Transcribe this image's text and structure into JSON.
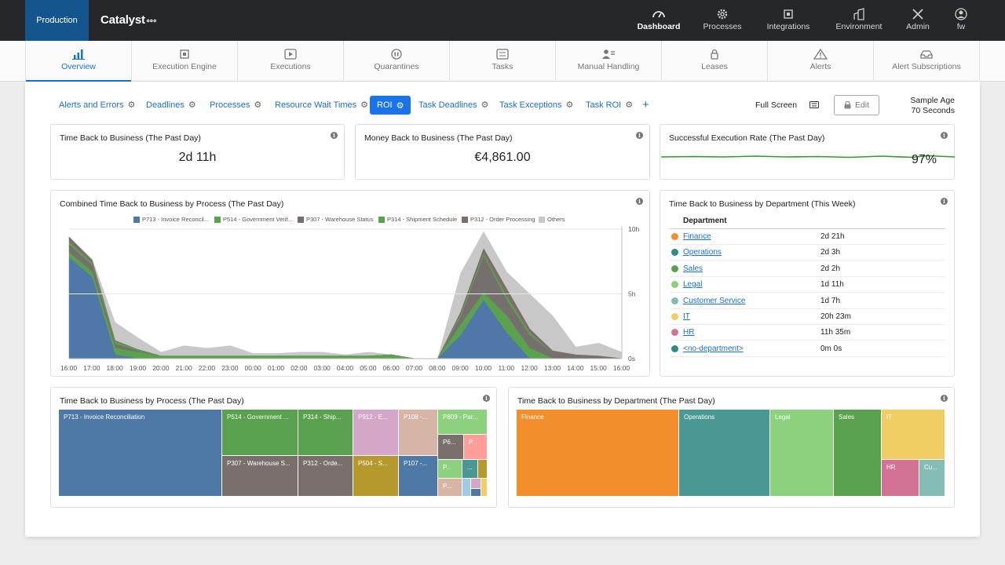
{
  "topbar": {
    "environment": "Production",
    "brand": "Catalyst",
    "nav": [
      {
        "label": "Dashboard",
        "icon": "gauge-icon",
        "active": true
      },
      {
        "label": "Processes",
        "icon": "cog-icon"
      },
      {
        "label": "Integrations",
        "icon": "chip-icon"
      },
      {
        "label": "Environment",
        "icon": "building-icon"
      },
      {
        "label": "Admin",
        "icon": "tools-icon"
      },
      {
        "label": "fw",
        "icon": "user-icon"
      }
    ]
  },
  "subnav": [
    {
      "label": "Overview",
      "icon": "bar-chart-icon",
      "active": true
    },
    {
      "label": "Execution Engine",
      "icon": "chip-icon"
    },
    {
      "label": "Executions",
      "icon": "play-icon"
    },
    {
      "label": "Quarantines",
      "icon": "pause-icon"
    },
    {
      "label": "Tasks",
      "icon": "task-list-icon"
    },
    {
      "label": "Manual Handling",
      "icon": "person-list-icon"
    },
    {
      "label": "Leases",
      "icon": "lock-icon"
    },
    {
      "label": "Alerts",
      "icon": "warning-icon"
    },
    {
      "label": "Alert Subscriptions",
      "icon": "inbox-icon"
    }
  ],
  "tabs": [
    {
      "label": "Alerts and Errors"
    },
    {
      "label": "Deadlines"
    },
    {
      "label": "Processes"
    },
    {
      "label": "Resource Wait Times"
    },
    {
      "label": "ROI",
      "active": true
    },
    {
      "label": "Task Deadlines"
    },
    {
      "label": "Task Exceptions"
    },
    {
      "label": "Task ROI"
    }
  ],
  "toolbar": {
    "add_symbol": "+",
    "fullscreen": "Full Screen",
    "edit": "Edit",
    "sample_age_label": "Sample Age",
    "sample_age_value": "70 Seconds"
  },
  "kpis": [
    {
      "title": "Time Back to Business (The Past Day)",
      "value": "2d 11h"
    },
    {
      "title": "Money Back to Business (The Past Day)",
      "value": "€4,861.00"
    },
    {
      "title": "Successful Execution Rate (The Past Day)",
      "value": "97%"
    }
  ],
  "chart_data": [
    {
      "type": "area",
      "title": "Combined Time Back to Business by Process (The Past Day)",
      "x": [
        "16:00",
        "17:00",
        "18:00",
        "19:00",
        "20:00",
        "21:00",
        "22:00",
        "23:00",
        "00:00",
        "01:00",
        "02:00",
        "03:00",
        "04:00",
        "05:00",
        "06:00",
        "07:00",
        "08:00",
        "09:00",
        "10:00",
        "11:00",
        "12:00",
        "13:00",
        "14:00",
        "15:00",
        "16:00"
      ],
      "yticks": [
        "10h",
        "5h",
        "0s"
      ],
      "ylim": [
        0,
        10
      ],
      "stacked": true,
      "series": [
        {
          "name": "P713 - Invoice Reconcil...",
          "color": "#4f77a8",
          "values": [
            7.8,
            6.3,
            0.3,
            0,
            0,
            0,
            0,
            0,
            0,
            0,
            0,
            0,
            0,
            0,
            0,
            0,
            0,
            1.8,
            4.5,
            2.0,
            0,
            0,
            0,
            0,
            0
          ]
        },
        {
          "name": "P514 - Government Verif...",
          "color": "#5ba24f",
          "values": [
            0.4,
            0.4,
            0.5,
            0.5,
            0.2,
            0.2,
            0.2,
            0.2,
            0.2,
            0.2,
            0.2,
            0.2,
            0.2,
            0.2,
            0.3,
            0,
            0,
            0.8,
            0.6,
            1.3,
            0.8,
            0,
            0,
            0,
            0
          ]
        },
        {
          "name": "P307 - Warehouse Status",
          "color": "#75706d",
          "values": [
            0.6,
            0.5,
            0.3,
            0.1,
            0,
            0,
            0,
            0,
            0,
            0,
            0,
            0,
            0,
            0,
            0,
            0,
            0,
            0.6,
            2.8,
            1.2,
            1.0,
            0.4,
            0.2,
            0.2,
            0
          ]
        },
        {
          "name": "P314 - Shipment Schedule",
          "color": "#59a14f",
          "values": [
            0.2,
            0.2,
            0.2,
            0.1,
            0,
            0,
            0,
            0,
            0,
            0,
            0,
            0,
            0,
            0,
            0,
            0,
            0,
            0.2,
            0.2,
            0.3,
            0.2,
            0,
            0,
            0,
            0
          ]
        },
        {
          "name": "P312 - Order Processing",
          "color": "#7d6e6b",
          "values": [
            0.4,
            0.2,
            0.1,
            0,
            0,
            0,
            0,
            0,
            0,
            0,
            0,
            0,
            0,
            0,
            0,
            0,
            0,
            0.2,
            0.4,
            0.6,
            0.3,
            0.2,
            0.1,
            0,
            0
          ]
        },
        {
          "name": "Others",
          "color": "#c8c8c8",
          "values": [
            0,
            0.1,
            1.4,
            0.9,
            0.3,
            0.8,
            0.6,
            0.8,
            0.2,
            0.2,
            0.3,
            0.3,
            0.1,
            0.3,
            0,
            0,
            0,
            3.0,
            1.3,
            1.3,
            2.7,
            2.7,
            0.6,
            1.0,
            0.5
          ]
        }
      ]
    },
    {
      "type": "table",
      "title": "Time Back to Business by Department (This Week)",
      "header": "Department",
      "rows": [
        {
          "name": "Finance",
          "value": "2d 21h",
          "color": "#f28e2b"
        },
        {
          "name": "Operations",
          "value": "2d 3h",
          "color": "#2e8b86"
        },
        {
          "name": "Sales",
          "value": "2d 2h",
          "color": "#59a14f"
        },
        {
          "name": "Legal",
          "value": "1d 11h",
          "color": "#8cd17d"
        },
        {
          "name": "Customer Service",
          "value": "1d 7h",
          "color": "#86bcb6"
        },
        {
          "name": "IT",
          "value": "20h 23m",
          "color": "#f1ce63"
        },
        {
          "name": "HR",
          "value": "11h 35m",
          "color": "#d37295"
        },
        {
          "name": "<no-department>",
          "value": "0m 0s",
          "color": "#2e8b86"
        }
      ]
    },
    {
      "type": "heatmap",
      "title": "Time Back to Business by Process (The Past Day)",
      "cells": [
        {
          "label": "P713 - Invoice Reconciliation",
          "color": "#4e79a7"
        },
        {
          "label": "P514 - Government ...",
          "color": "#59a14f"
        },
        {
          "label": "P307 - Warehouse S...",
          "color": "#79706e"
        },
        {
          "label": "P314 - Ship...",
          "color": "#59a14f"
        },
        {
          "label": "P312 - Orde...",
          "color": "#79706e"
        },
        {
          "label": "P912 - E...",
          "color": "#d4a6c8"
        },
        {
          "label": "P504 - S...",
          "color": "#b6992d"
        },
        {
          "label": "P108 -...",
          "color": "#d7b5a6"
        },
        {
          "label": "P107 -...",
          "color": "#4e79a7"
        },
        {
          "label": "P809 - Par...",
          "color": "#8cd17d"
        },
        {
          "label": "P6...",
          "color": "#79706e"
        },
        {
          "label": "P...",
          "color": "#ff9d9a"
        },
        {
          "label": "P...",
          "color": "#8cd17d"
        },
        {
          "label": "...",
          "color": "#499894"
        },
        {
          "label": "P...",
          "color": "#d7b5a6"
        }
      ]
    },
    {
      "type": "heatmap",
      "title": "Time Back to Business by Department (The Past Day)",
      "cells": [
        {
          "label": "Finance",
          "color": "#f28e2b"
        },
        {
          "label": "Operations",
          "color": "#499894"
        },
        {
          "label": "Legal",
          "color": "#8cd17d"
        },
        {
          "label": "Sales",
          "color": "#59a14f"
        },
        {
          "label": "IT",
          "color": "#f1ce63"
        },
        {
          "label": "HR",
          "color": "#d37295"
        },
        {
          "label": "Cu...",
          "color": "#86bcb6"
        }
      ]
    }
  ],
  "accent_color": "#1a73e8",
  "success_line_color": "#2a9d2a"
}
